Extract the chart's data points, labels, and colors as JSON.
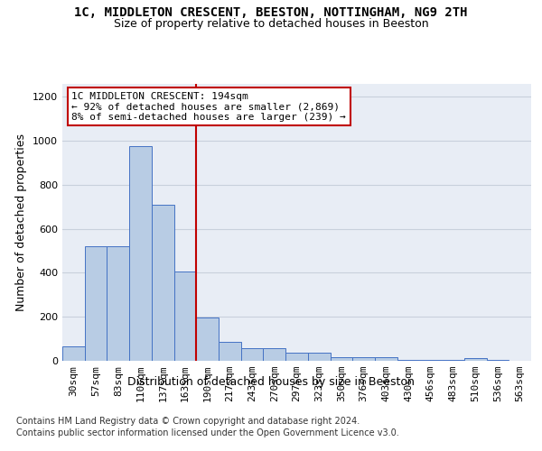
{
  "title_line1": "1C, MIDDLETON CRESCENT, BEESTON, NOTTINGHAM, NG9 2TH",
  "title_line2": "Size of property relative to detached houses in Beeston",
  "xlabel": "Distribution of detached houses by size in Beeston",
  "ylabel": "Number of detached properties",
  "footer_line1": "Contains HM Land Registry data © Crown copyright and database right 2024.",
  "footer_line2": "Contains public sector information licensed under the Open Government Licence v3.0.",
  "bin_labels": [
    "30sqm",
    "57sqm",
    "83sqm",
    "110sqm",
    "137sqm",
    "163sqm",
    "190sqm",
    "217sqm",
    "243sqm",
    "270sqm",
    "297sqm",
    "323sqm",
    "350sqm",
    "376sqm",
    "403sqm",
    "430sqm",
    "456sqm",
    "483sqm",
    "510sqm",
    "536sqm",
    "563sqm"
  ],
  "bar_values": [
    65,
    520,
    520,
    975,
    710,
    405,
    195,
    85,
    58,
    57,
    35,
    35,
    18,
    18,
    18,
    5,
    5,
    5,
    12,
    5,
    0
  ],
  "bar_color": "#b8cce4",
  "bar_edge_color": "#4472c4",
  "annotation_text": "1C MIDDLETON CRESCENT: 194sqm\n← 92% of detached houses are smaller (2,869)\n8% of semi-detached houses are larger (239) →",
  "annotation_box_color": "#ffffff",
  "annotation_border_color": "#c00000",
  "vline_color": "#c00000",
  "vline_x": 5.5,
  "ylim": [
    0,
    1260
  ],
  "yticks": [
    0,
    200,
    400,
    600,
    800,
    1000,
    1200
  ],
  "grid_color": "#c8d0dc",
  "bg_color": "#e8edf5",
  "title_fontsize": 10,
  "subtitle_fontsize": 9,
  "axis_label_fontsize": 9,
  "tick_fontsize": 8,
  "footer_fontsize": 7
}
